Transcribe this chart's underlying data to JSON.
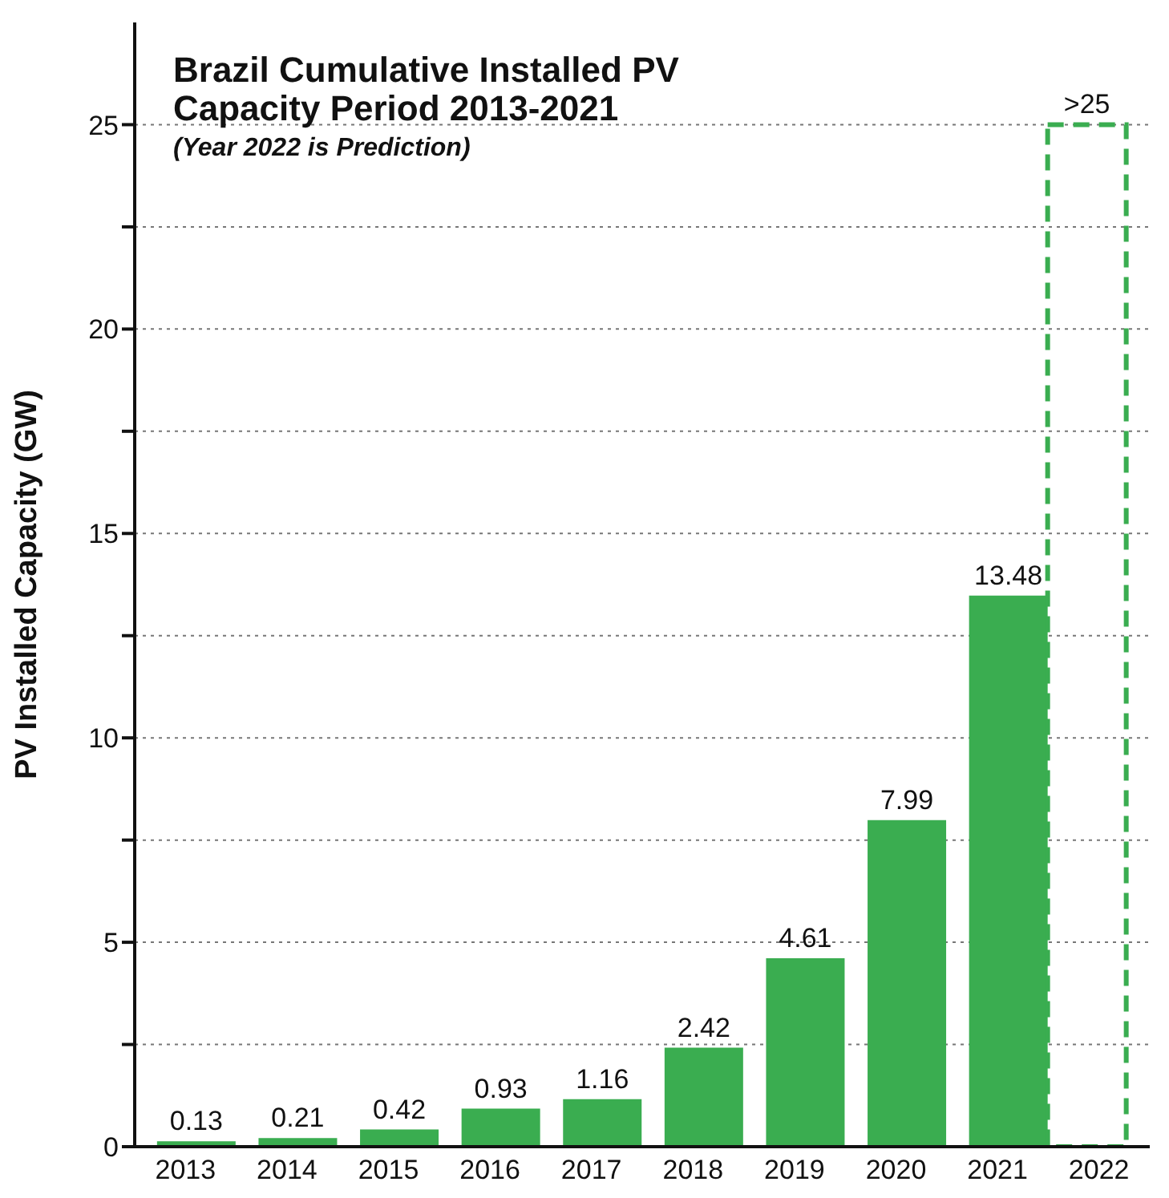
{
  "chart_data": {
    "type": "bar",
    "title": "Brazil Cumulative Installed PV Capacity Period 2013-2021",
    "subtitle": "(Year 2022 is Prediction)",
    "ylabel": "PV Installed Capacity (GW)",
    "categories": [
      "2013",
      "2014",
      "2015",
      "2016",
      "2017",
      "2018",
      "2019",
      "2020",
      "2021",
      "2022"
    ],
    "series": [
      {
        "color": "#3aad50",
        "values": [
          0.13,
          0.21,
          0.42,
          0.93,
          1.16,
          2.42,
          4.61,
          7.99,
          13.48,
          null
        ],
        "value_labels": [
          "0.13",
          "0.21",
          "0.42",
          "0.93",
          "1.16",
          "2.42",
          "4.61",
          "7.99",
          "13.48",
          null
        ]
      },
      {
        "color": "#3aad50",
        "line_style": "dashed",
        "values": [
          null,
          null,
          null,
          null,
          null,
          null,
          null,
          null,
          null,
          25
        ],
        "value_labels": [
          null,
          null,
          null,
          null,
          null,
          null,
          null,
          null,
          null,
          ">25"
        ]
      }
    ],
    "ylim": [
      0,
      27.5
    ],
    "yticks": [
      0,
      {
        "value": 2.5,
        "label": null
      },
      5,
      {
        "value": 7.5,
        "label": null
      },
      10,
      {
        "value": 12.5,
        "label": null
      },
      15,
      {
        "value": 17.5,
        "label": null
      },
      20,
      {
        "value": 22.5,
        "label": null
      },
      25
    ],
    "grid": "y",
    "legend": false
  }
}
